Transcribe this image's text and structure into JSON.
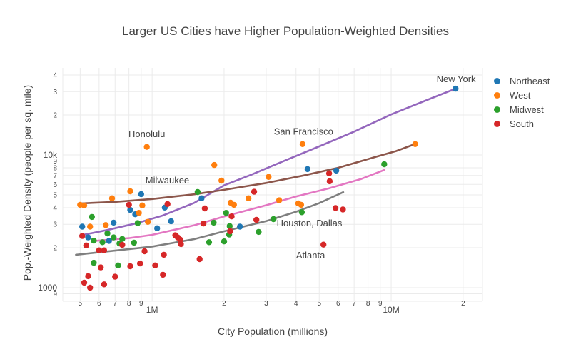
{
  "title": "Larger US Cities have Higher Population-Weighted Densities",
  "x_axis": {
    "title": "City Population (millions)",
    "type": "log",
    "domain": [
      0.423,
      24.1
    ],
    "ticks": [
      {
        "v": 0.5,
        "label": "5",
        "major": false
      },
      {
        "v": 0.6,
        "label": "6",
        "major": false
      },
      {
        "v": 0.7,
        "label": "7",
        "major": false
      },
      {
        "v": 0.8,
        "label": "8",
        "major": false
      },
      {
        "v": 0.9,
        "label": "9",
        "major": false
      },
      {
        "v": 1,
        "label": "1M",
        "major": true
      },
      {
        "v": 2,
        "label": "2",
        "major": false
      },
      {
        "v": 3,
        "label": "3",
        "major": false
      },
      {
        "v": 4,
        "label": "4",
        "major": false
      },
      {
        "v": 5,
        "label": "5",
        "major": false
      },
      {
        "v": 6,
        "label": "6",
        "major": false
      },
      {
        "v": 7,
        "label": "7",
        "major": false
      },
      {
        "v": 8,
        "label": "8",
        "major": false
      },
      {
        "v": 9,
        "label": "9",
        "major": false
      },
      {
        "v": 10,
        "label": "10M",
        "major": true
      },
      {
        "v": 20,
        "label": "2",
        "major": false
      }
    ]
  },
  "y_axis": {
    "title": "Pop.-Weighted Density (people per sq. mile)",
    "type": "log",
    "domain": [
      790,
      45300
    ],
    "ticks": [
      {
        "v": 40000,
        "label": "4",
        "major": false
      },
      {
        "v": 30000,
        "label": "3",
        "major": false
      },
      {
        "v": 20000,
        "label": "2",
        "major": false
      },
      {
        "v": 10000,
        "label": "10k",
        "major": true
      },
      {
        "v": 9000,
        "label": "9",
        "major": false
      },
      {
        "v": 8000,
        "label": "8",
        "major": false
      },
      {
        "v": 7000,
        "label": "7",
        "major": false
      },
      {
        "v": 6000,
        "label": "6",
        "major": false
      },
      {
        "v": 5000,
        "label": "5",
        "major": false
      },
      {
        "v": 4000,
        "label": "4",
        "major": false
      },
      {
        "v": 3000,
        "label": "3",
        "major": false
      },
      {
        "v": 2000,
        "label": "2",
        "major": false
      },
      {
        "v": 1000,
        "label": "1000",
        "major": true
      },
      {
        "v": 900,
        "label": "9",
        "major": false
      }
    ]
  },
  "legend": {
    "items": [
      {
        "label": "Northeast",
        "color": "#1f77b4"
      },
      {
        "label": "West",
        "color": "#ff7f0e"
      },
      {
        "label": "Midwest",
        "color": "#2ca02c"
      },
      {
        "label": "South",
        "color": "#d62728"
      }
    ]
  },
  "colors": {
    "grid": "#ebebeb",
    "text": "#444444",
    "background": "#ffffff"
  },
  "chart_data": {
    "type": "scatter",
    "x_units": "millions of people (log scale)",
    "y_units": "people per sq. mile (log scale)",
    "series": [
      {
        "name": "Northeast",
        "color": "#1f77b4",
        "points": [
          [
            0.51,
            2880
          ],
          [
            0.54,
            2390
          ],
          [
            0.66,
            2250
          ],
          [
            0.69,
            3090
          ],
          [
            0.81,
            3850
          ],
          [
            0.85,
            3570
          ],
          [
            0.9,
            5060
          ],
          [
            1.05,
            2800
          ],
          [
            1.13,
            4010
          ],
          [
            1.2,
            3160
          ],
          [
            1.61,
            4710
          ],
          [
            2.33,
            2880
          ],
          [
            4.47,
            7820
          ],
          [
            5.89,
            7630
          ],
          [
            18.6,
            31600
          ]
        ]
      },
      {
        "name": "West",
        "color": "#ff7f0e",
        "points": [
          [
            0.5,
            4210
          ],
          [
            0.52,
            4160
          ],
          [
            0.55,
            2880
          ],
          [
            0.64,
            2960
          ],
          [
            0.68,
            4710
          ],
          [
            0.81,
            5320
          ],
          [
            0.88,
            3660
          ],
          [
            0.91,
            4160
          ],
          [
            0.95,
            11500
          ],
          [
            0.96,
            3130
          ],
          [
            1.82,
            8400
          ],
          [
            1.95,
            6400
          ],
          [
            2.13,
            4360
          ],
          [
            2.2,
            4210
          ],
          [
            2.53,
            4710
          ],
          [
            3.07,
            6830
          ],
          [
            3.4,
            4550
          ],
          [
            4.09,
            4310
          ],
          [
            4.2,
            4210
          ],
          [
            4.26,
            12070
          ],
          [
            12.6,
            12070
          ]
        ]
      },
      {
        "name": "Midwest",
        "color": "#2ca02c",
        "points": [
          [
            0.56,
            3410
          ],
          [
            0.57,
            2260
          ],
          [
            0.57,
            1540
          ],
          [
            0.62,
            2200
          ],
          [
            0.65,
            2560
          ],
          [
            0.69,
            2390
          ],
          [
            0.72,
            1470
          ],
          [
            0.73,
            2150
          ],
          [
            0.75,
            2330
          ],
          [
            0.84,
            2180
          ],
          [
            0.87,
            3060
          ],
          [
            1.55,
            5250
          ],
          [
            1.73,
            2200
          ],
          [
            1.81,
            3090
          ],
          [
            2.0,
            2230
          ],
          [
            2.04,
            3660
          ],
          [
            2.1,
            2510
          ],
          [
            2.11,
            2910
          ],
          [
            2.79,
            2630
          ],
          [
            3.22,
            3280
          ],
          [
            4.23,
            3700
          ],
          [
            9.35,
            8510
          ]
        ]
      },
      {
        "name": "South",
        "color": "#d62728",
        "points": [
          [
            0.51,
            2450
          ],
          [
            0.53,
            2080
          ],
          [
            0.52,
            1090
          ],
          [
            0.54,
            1220
          ],
          [
            0.55,
            1000
          ],
          [
            0.6,
            1910
          ],
          [
            0.61,
            1420
          ],
          [
            0.63,
            1910
          ],
          [
            0.63,
            1060
          ],
          [
            0.7,
            1210
          ],
          [
            0.75,
            2100
          ],
          [
            0.8,
            4210
          ],
          [
            0.81,
            1450
          ],
          [
            0.89,
            1520
          ],
          [
            0.93,
            1880
          ],
          [
            1.03,
            1470
          ],
          [
            1.11,
            1250
          ],
          [
            1.12,
            1770
          ],
          [
            1.16,
            4260
          ],
          [
            1.25,
            2480
          ],
          [
            1.28,
            2390
          ],
          [
            1.31,
            2300
          ],
          [
            1.32,
            2130
          ],
          [
            1.58,
            1640
          ],
          [
            1.64,
            3040
          ],
          [
            1.66,
            3950
          ],
          [
            2.12,
            2660
          ],
          [
            2.15,
            3440
          ],
          [
            2.67,
            5280
          ],
          [
            2.73,
            3240
          ],
          [
            5.21,
            2110
          ],
          [
            5.5,
            7270
          ],
          [
            5.53,
            6330
          ],
          [
            5.85,
            3980
          ],
          [
            6.28,
            3880
          ]
        ]
      }
    ],
    "trend_lines": [
      {
        "name": "Northeast trend",
        "color": "#9467bd",
        "points": [
          [
            0.5,
            2470
          ],
          [
            0.65,
            2720
          ],
          [
            0.85,
            3040
          ],
          [
            1.1,
            3480
          ],
          [
            1.5,
            4350
          ],
          [
            2.0,
            5900
          ],
          [
            2.6,
            7100
          ],
          [
            3.5,
            8900
          ],
          [
            5.0,
            11600
          ],
          [
            7.0,
            15000
          ],
          [
            10.0,
            20200
          ],
          [
            14.0,
            25800
          ],
          [
            18.6,
            31600
          ]
        ]
      },
      {
        "name": "West trend",
        "color": "#8c564b",
        "points": [
          [
            0.5,
            4310
          ],
          [
            0.7,
            4430
          ],
          [
            1.0,
            4650
          ],
          [
            1.5,
            5050
          ],
          [
            2.0,
            5460
          ],
          [
            3.0,
            6150
          ],
          [
            4.3,
            7000
          ],
          [
            6.0,
            8000
          ],
          [
            8.5,
            9600
          ],
          [
            10.5,
            10700
          ],
          [
            12.6,
            12100
          ]
        ]
      },
      {
        "name": "Midwest trend",
        "color": "#e377c2",
        "points": [
          [
            0.56,
            2240
          ],
          [
            0.8,
            2360
          ],
          [
            1.0,
            2500
          ],
          [
            1.5,
            2950
          ],
          [
            2.0,
            3440
          ],
          [
            3.0,
            4180
          ],
          [
            4.0,
            4860
          ],
          [
            5.5,
            5600
          ],
          [
            7.5,
            6600
          ],
          [
            9.35,
            7700
          ]
        ]
      },
      {
        "name": "South trend",
        "color": "#7f7f7f",
        "points": [
          [
            0.48,
            1770
          ],
          [
            0.7,
            1900
          ],
          [
            1.0,
            2040
          ],
          [
            1.5,
            2320
          ],
          [
            2.0,
            2660
          ],
          [
            3.0,
            3170
          ],
          [
            4.0,
            3730
          ],
          [
            5.0,
            4330
          ],
          [
            6.3,
            5240
          ]
        ]
      }
    ],
    "annotations": [
      {
        "text": "New York",
        "x": 18.7,
        "y": 37200,
        "anchor": "middle"
      },
      {
        "text": "San Francisco",
        "x": 4.3,
        "y": 15000,
        "anchor": "middle"
      },
      {
        "text": "Honolulu",
        "x": 0.95,
        "y": 14300,
        "anchor": "middle"
      },
      {
        "text": "Milwaukee",
        "x": 1.43,
        "y": 6400,
        "anchor": "end"
      },
      {
        "text": "Houston, Dallas",
        "x": 4.55,
        "y": 3050,
        "anchor": "middle"
      },
      {
        "text": "Atlanta",
        "x": 4.6,
        "y": 1740,
        "anchor": "middle"
      }
    ]
  }
}
